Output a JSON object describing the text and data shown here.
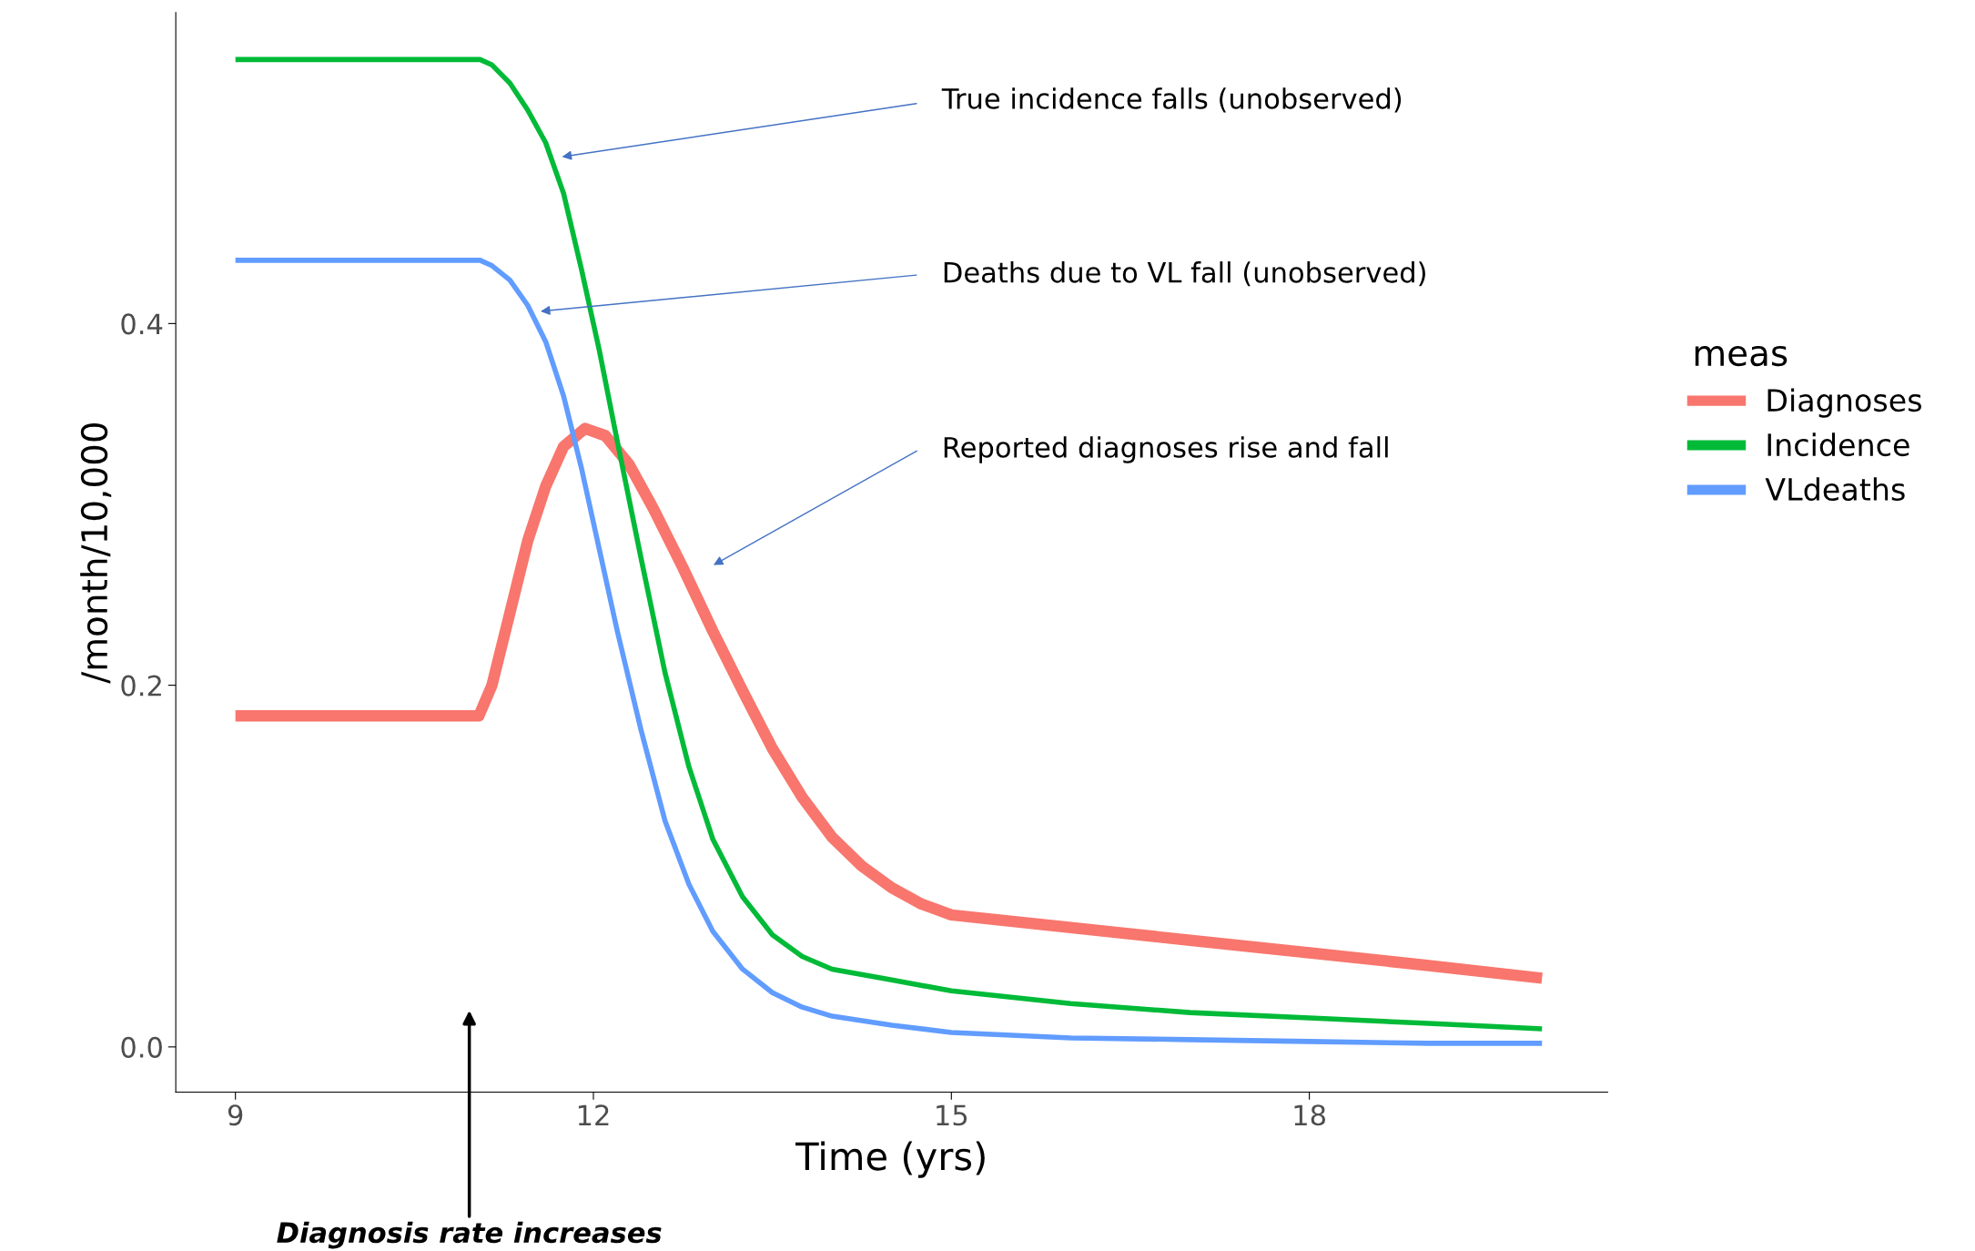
{
  "chart_data": {
    "type": "line",
    "xlabel": "Time (yrs)",
    "ylabel": "/month/10,000",
    "legend_title": "meas",
    "legend": "right",
    "grid": false,
    "marker": "none",
    "line_style": "solid",
    "xlim": [
      8.5,
      20.5
    ],
    "ylim": [
      -0.025,
      0.572
    ],
    "xticks": [
      9,
      12,
      15,
      18
    ],
    "yticks": [
      {
        "value": 0,
        "label": "0.0"
      },
      0.2,
      0.4
    ],
    "series": [
      {
        "name": "Diagnoses",
        "color": "#f8766d",
        "x": [
          9,
          11.04,
          11.15,
          11.3,
          11.45,
          11.6,
          11.75,
          11.93,
          12.1,
          12.3,
          12.5,
          12.75,
          13.0,
          13.25,
          13.5,
          13.75,
          14,
          14.25,
          14.5,
          14.75,
          15,
          16,
          17,
          18,
          19,
          19.95
        ],
        "values": [
          0.183,
          0.183,
          0.2,
          0.24,
          0.28,
          0.31,
          0.332,
          0.342,
          0.338,
          0.322,
          0.298,
          0.265,
          0.23,
          0.197,
          0.165,
          0.138,
          0.116,
          0.1,
          0.088,
          0.079,
          0.073,
          0.066,
          0.059,
          0.052,
          0.045,
          0.038
        ]
      },
      {
        "name": "Incidence",
        "color": "#00ba38",
        "x": [
          9,
          11.05,
          11.15,
          11.3,
          11.45,
          11.6,
          11.75,
          11.9,
          12.05,
          12.2,
          12.4,
          12.6,
          12.8,
          13.0,
          13.25,
          13.5,
          13.75,
          14,
          14.5,
          15,
          16,
          17,
          18,
          19,
          19.95
        ],
        "values": [
          0.546,
          0.546,
          0.543,
          0.533,
          0.518,
          0.5,
          0.472,
          0.43,
          0.385,
          0.335,
          0.27,
          0.207,
          0.155,
          0.115,
          0.083,
          0.062,
          0.05,
          0.043,
          0.037,
          0.031,
          0.024,
          0.019,
          0.016,
          0.013,
          0.01
        ]
      },
      {
        "name": "VLdeaths",
        "color": "#619cff",
        "x": [
          9,
          11.05,
          11.15,
          11.3,
          11.45,
          11.6,
          11.75,
          11.9,
          12.05,
          12.2,
          12.4,
          12.6,
          12.8,
          13.0,
          13.25,
          13.5,
          13.75,
          14,
          14.5,
          15,
          16,
          17,
          18,
          19,
          19.95
        ],
        "values": [
          0.435,
          0.435,
          0.432,
          0.424,
          0.41,
          0.39,
          0.36,
          0.32,
          0.275,
          0.23,
          0.175,
          0.125,
          0.09,
          0.064,
          0.043,
          0.03,
          0.022,
          0.017,
          0.012,
          0.008,
          0.005,
          0.004,
          0.003,
          0.002,
          0.002
        ]
      }
    ],
    "annotations": [
      "True incidence falls (unobserved)",
      "Deaths due to VL fall (unobserved)",
      "Reported diagnoses rise and fall",
      "Diagnosis rate increases"
    ]
  }
}
